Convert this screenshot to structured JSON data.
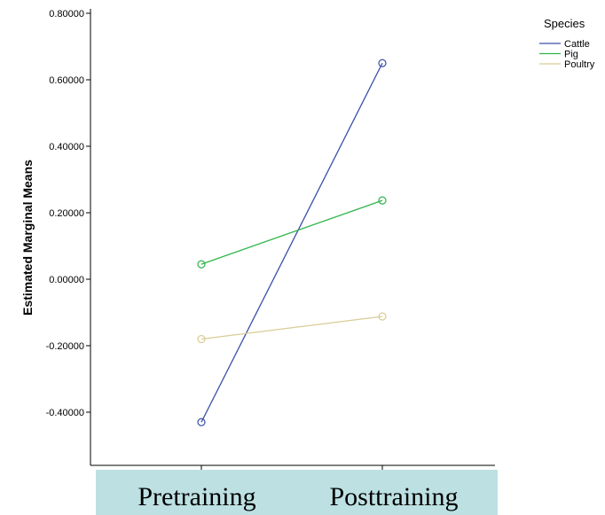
{
  "chart_data": {
    "type": "line",
    "title": "",
    "xlabel": "",
    "ylabel": "Estimated Marginal Means",
    "categories": [
      "Pretraining",
      "Posttraining"
    ],
    "yticks": [
      "0.80000",
      "0.60000",
      "0.40000",
      "0.20000",
      "0.00000",
      "-0.20000",
      "-0.40000"
    ],
    "ylim": [
      -0.55,
      0.8
    ],
    "legend_title": "Species",
    "legend_position": "top-right",
    "grid": false,
    "series": [
      {
        "name": "Cattle",
        "values": [
          -0.43,
          0.65
        ],
        "color": "#3a4fa8"
      },
      {
        "name": "Pig",
        "values": [
          0.045,
          0.237
        ],
        "color": "#2db54a"
      },
      {
        "name": "Poultry",
        "values": [
          -0.18,
          -0.112
        ],
        "color": "#d9cc96"
      }
    ],
    "category_band_color": "#bde0e3"
  }
}
